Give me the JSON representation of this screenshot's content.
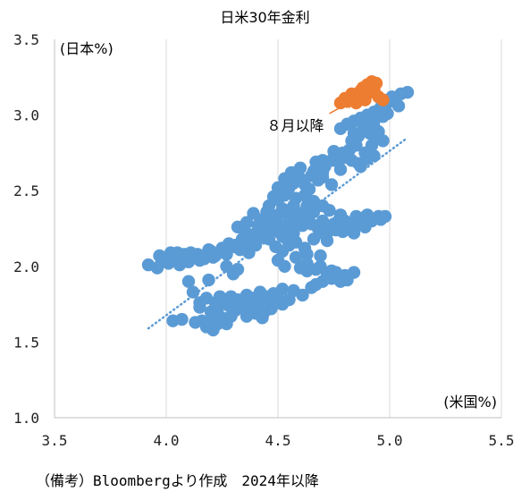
{
  "chart_data": {
    "type": "scatter",
    "title": "日米30年金利",
    "xlabel": "(米国%)",
    "ylabel": "(日本%)",
    "xlim": [
      3.5,
      5.5
    ],
    "ylim": [
      1.0,
      3.5
    ],
    "x_ticks": [
      "3.5",
      "4.0",
      "4.5",
      "5.0",
      "5.5"
    ],
    "y_ticks": [
      "1.0",
      "1.5",
      "2.0",
      "2.5",
      "3.0",
      "3.5"
    ],
    "grid": "vertical",
    "trendline": {
      "style": "dotted",
      "x": [
        3.92,
        5.08
      ],
      "y": [
        1.59,
        2.85
      ]
    },
    "annotation": {
      "text": "８月以降",
      "from": [
        4.73,
        3.01
      ],
      "to": [
        4.85,
        3.1
      ]
    },
    "colors": {
      "blue": "#5b9bd5",
      "orange": "#ed7d31",
      "grid": "#d9d9d9",
      "axis": "#bfbfbf"
    },
    "series": [
      {
        "color": "blue",
        "points": [
          [
            3.92,
            2.01
          ],
          [
            3.96,
            1.99
          ],
          [
            3.98,
            2.03
          ],
          [
            4.01,
            2.02
          ],
          [
            3.97,
            2.07
          ],
          [
            4.03,
            2.05
          ],
          [
            4.06,
            2.01
          ],
          [
            4.08,
            2.06
          ],
          [
            4.11,
            2.09
          ],
          [
            4.14,
            2.08
          ],
          [
            4.17,
            2.05
          ],
          [
            4.19,
            2.11
          ],
          [
            4.22,
            2.07
          ],
          [
            4.25,
            2.12
          ],
          [
            4.28,
            2.15
          ],
          [
            4.31,
            2.14
          ],
          [
            4.34,
            2.18
          ],
          [
            4.36,
            2.16
          ],
          [
            4.39,
            2.21
          ],
          [
            4.42,
            2.19
          ],
          [
            4.45,
            2.23
          ],
          [
            4.48,
            2.25
          ],
          [
            4.51,
            2.22
          ],
          [
            4.53,
            2.27
          ],
          [
            4.56,
            2.24
          ],
          [
            4.58,
            2.3
          ],
          [
            4.47,
            2.29
          ],
          [
            4.43,
            2.31
          ],
          [
            4.5,
            2.34
          ],
          [
            4.55,
            2.33
          ],
          [
            4.52,
            2.2
          ],
          [
            4.49,
            2.13
          ],
          [
            4.46,
            2.18
          ],
          [
            4.4,
            2.14
          ],
          [
            4.37,
            2.09
          ],
          [
            4.33,
            2.11
          ],
          [
            4.1,
            2.03
          ],
          [
            4.05,
            2.09
          ],
          [
            4.2,
            2.1
          ],
          [
            4.27,
            2.08
          ],
          [
            4.35,
            2.24
          ],
          [
            4.41,
            2.27
          ],
          [
            4.45,
            2.36
          ],
          [
            4.52,
            2.38
          ],
          [
            4.57,
            2.4
          ],
          [
            4.5,
            2.44
          ],
          [
            4.53,
            2.47
          ],
          [
            4.55,
            2.52
          ],
          [
            4.57,
            2.55
          ],
          [
            4.6,
            2.58
          ],
          [
            4.62,
            2.54
          ],
          [
            4.65,
            2.6
          ],
          [
            4.68,
            2.57
          ],
          [
            4.7,
            2.62
          ],
          [
            4.67,
            2.69
          ],
          [
            4.7,
            2.7
          ],
          [
            4.74,
            2.7
          ],
          [
            4.77,
            2.69
          ],
          [
            4.8,
            2.72
          ],
          [
            4.83,
            2.7
          ],
          [
            4.86,
            2.68
          ],
          [
            4.9,
            2.71
          ],
          [
            4.93,
            2.73
          ],
          [
            4.82,
            2.77
          ],
          [
            4.85,
            2.8
          ],
          [
            4.83,
            2.83
          ],
          [
            4.86,
            2.86
          ],
          [
            4.88,
            2.9
          ],
          [
            4.91,
            2.88
          ],
          [
            4.93,
            2.92
          ],
          [
            4.95,
            2.89
          ],
          [
            4.78,
            2.91
          ],
          [
            4.81,
            2.94
          ],
          [
            4.84,
            2.96
          ],
          [
            4.87,
            2.98
          ],
          [
            4.9,
            3.0
          ],
          [
            4.93,
            3.02
          ],
          [
            4.96,
            3.05
          ],
          [
            4.99,
            3.08
          ],
          [
            5.02,
            3.1
          ],
          [
            5.05,
            3.14
          ],
          [
            5.08,
            3.15
          ],
          [
            5.01,
            3.12
          ],
          [
            4.97,
            3.1
          ],
          [
            4.87,
            2.66
          ],
          [
            4.74,
            2.54
          ],
          [
            4.7,
            2.59
          ],
          [
            4.64,
            2.51
          ],
          [
            4.58,
            2.45
          ],
          [
            4.63,
            2.4
          ],
          [
            4.66,
            2.36
          ],
          [
            4.7,
            2.3
          ],
          [
            4.75,
            2.28
          ],
          [
            4.8,
            2.3
          ],
          [
            4.85,
            2.33
          ],
          [
            4.9,
            2.34
          ],
          [
            4.95,
            2.33
          ],
          [
            4.98,
            2.33
          ],
          [
            4.68,
            2.25
          ],
          [
            4.72,
            2.22
          ],
          [
            4.76,
            2.24
          ],
          [
            4.82,
            2.26
          ],
          [
            4.87,
            2.28
          ],
          [
            4.92,
            2.3
          ],
          [
            4.61,
            2.27
          ],
          [
            4.57,
            2.22
          ],
          [
            4.55,
            2.14
          ],
          [
            4.52,
            2.1
          ],
          [
            4.5,
            2.04
          ],
          [
            4.53,
            2.0
          ],
          [
            4.6,
            1.99
          ],
          [
            4.63,
            1.97
          ],
          [
            4.67,
            1.98
          ],
          [
            4.72,
            1.95
          ],
          [
            4.76,
            1.96
          ],
          [
            4.8,
            1.94
          ],
          [
            4.84,
            1.96
          ],
          [
            4.7,
            1.9
          ],
          [
            4.74,
            1.92
          ],
          [
            4.78,
            1.9
          ],
          [
            4.65,
            1.86
          ],
          [
            4.57,
            1.84
          ],
          [
            4.52,
            1.85
          ],
          [
            4.48,
            1.82
          ],
          [
            4.45,
            1.8
          ],
          [
            4.42,
            1.83
          ],
          [
            4.39,
            1.79
          ],
          [
            4.36,
            1.81
          ],
          [
            4.32,
            1.78
          ],
          [
            4.29,
            1.8
          ],
          [
            4.26,
            1.77
          ],
          [
            4.24,
            1.8
          ],
          [
            4.22,
            1.76
          ],
          [
            4.18,
            1.79
          ],
          [
            4.15,
            1.76
          ],
          [
            4.12,
            1.83
          ],
          [
            4.15,
            1.73
          ],
          [
            4.2,
            1.7
          ],
          [
            4.23,
            1.72
          ],
          [
            4.28,
            1.74
          ],
          [
            4.31,
            1.71
          ],
          [
            4.35,
            1.73
          ],
          [
            4.38,
            1.74
          ],
          [
            4.41,
            1.76
          ],
          [
            4.44,
            1.7
          ],
          [
            4.47,
            1.72
          ],
          [
            4.4,
            1.69
          ],
          [
            4.36,
            1.67
          ],
          [
            4.43,
            1.66
          ],
          [
            4.29,
            1.67
          ],
          [
            4.27,
            1.62
          ],
          [
            4.23,
            1.62
          ],
          [
            4.2,
            1.64
          ],
          [
            4.21,
            1.58
          ],
          [
            4.18,
            1.6
          ],
          [
            4.16,
            1.64
          ],
          [
            4.07,
            1.65
          ],
          [
            4.03,
            1.64
          ],
          [
            4.1,
            1.9
          ],
          [
            4.19,
            1.91
          ],
          [
            4.3,
            1.95
          ],
          [
            4.27,
            2.0
          ],
          [
            4.32,
            1.98
          ],
          [
            4.35,
            2.13
          ],
          [
            4.38,
            2.19
          ],
          [
            4.3,
            2.13
          ],
          [
            4.26,
            2.1
          ],
          [
            4.21,
            2.06
          ],
          [
            4.15,
            2.04
          ],
          [
            4.08,
            2.08
          ],
          [
            4.02,
            2.09
          ],
          [
            4.62,
            2.32
          ],
          [
            4.65,
            2.28
          ],
          [
            4.6,
            2.35
          ],
          [
            4.55,
            2.37
          ],
          [
            4.48,
            2.33
          ],
          [
            4.42,
            2.29
          ],
          [
            4.39,
            2.35
          ],
          [
            4.36,
            2.29
          ],
          [
            4.32,
            2.26
          ],
          [
            4.46,
            2.4
          ],
          [
            4.48,
            2.46
          ],
          [
            4.5,
            2.27
          ],
          [
            4.54,
            2.18
          ],
          [
            4.58,
            2.16
          ],
          [
            4.62,
            2.12
          ],
          [
            4.66,
            2.18
          ],
          [
            4.71,
            2.21
          ],
          [
            4.73,
            2.26
          ],
          [
            4.77,
            2.3
          ],
          [
            4.84,
            2.22
          ],
          [
            4.89,
            2.26
          ],
          [
            4.96,
            2.31
          ],
          [
            4.89,
            2.75
          ],
          [
            4.92,
            2.8
          ],
          [
            4.95,
            2.85
          ],
          [
            4.97,
            2.83
          ],
          [
            4.84,
            2.88
          ],
          [
            4.89,
            2.93
          ],
          [
            4.93,
            2.96
          ],
          [
            4.97,
            2.99
          ],
          [
            4.99,
            3.01
          ],
          [
            5.04,
            3.06
          ],
          [
            4.6,
            2.65
          ],
          [
            4.56,
            2.62
          ],
          [
            4.53,
            2.58
          ],
          [
            4.78,
            2.64
          ],
          [
            4.79,
            2.75
          ],
          [
            4.75,
            2.76
          ],
          [
            4.71,
            2.66
          ],
          [
            4.66,
            2.63
          ],
          [
            4.5,
            2.52
          ],
          [
            4.62,
            2.47
          ],
          [
            4.66,
            2.43
          ],
          [
            4.7,
            2.4
          ],
          [
            4.73,
            2.37
          ],
          [
            4.78,
            2.34
          ],
          [
            4.72,
            2.17
          ],
          [
            4.79,
            2.23
          ],
          [
            4.84,
            2.29
          ],
          [
            4.88,
            2.32
          ],
          [
            4.69,
            2.07
          ],
          [
            4.69,
            2.0
          ],
          [
            4.63,
            2.08
          ],
          [
            4.58,
            2.06
          ],
          [
            4.63,
            2.02
          ],
          [
            4.67,
            1.88
          ],
          [
            4.81,
            1.91
          ],
          [
            4.74,
            1.97
          ],
          [
            4.61,
            1.81
          ],
          [
            4.55,
            1.78
          ],
          [
            4.52,
            1.75
          ],
          [
            4.5,
            1.79
          ],
          [
            4.46,
            1.77
          ],
          [
            4.38,
            1.77
          ],
          [
            4.34,
            1.77
          ],
          [
            4.25,
            1.66
          ],
          [
            4.22,
            1.66
          ],
          [
            4.13,
            1.63
          ]
        ]
      },
      {
        "color": "orange",
        "points": [
          [
            4.78,
            3.08
          ],
          [
            4.81,
            3.09
          ],
          [
            4.83,
            3.14
          ],
          [
            4.86,
            3.12
          ],
          [
            4.88,
            3.18
          ],
          [
            4.9,
            3.2
          ],
          [
            4.92,
            3.22
          ],
          [
            4.94,
            3.21
          ],
          [
            4.89,
            3.1
          ],
          [
            4.85,
            3.08
          ],
          [
            4.95,
            3.12
          ],
          [
            4.97,
            3.1
          ],
          [
            4.87,
            3.16
          ],
          [
            4.91,
            3.15
          ],
          [
            4.8,
            3.11
          ],
          [
            4.93,
            3.17
          ]
        ]
      }
    ]
  },
  "footnote": "（備考）Bloombergより作成　2024年以降"
}
